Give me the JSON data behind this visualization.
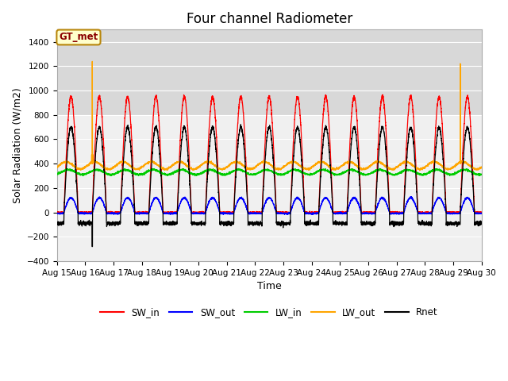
{
  "title": "Four channel Radiometer",
  "xlabel": "Time",
  "ylabel": "Solar Radiation (W/m2)",
  "annotation": "GT_met",
  "ylim": [
    -400,
    1500
  ],
  "xlim": [
    0,
    15
  ],
  "x_tick_labels": [
    "Aug 15",
    "Aug 16",
    "Aug 17",
    "Aug 18",
    "Aug 19",
    "Aug 20",
    "Aug 21",
    "Aug 22",
    "Aug 23",
    "Aug 24",
    "Aug 25",
    "Aug 26",
    "Aug 27",
    "Aug 28",
    "Aug 29",
    "Aug 30"
  ],
  "background_color": "#ffffff",
  "plot_bg_color": "#f0f0f0",
  "grid_color": "#ffffff",
  "upper_band_color": "#d8d8d8",
  "upper_band_ymin": 800,
  "upper_band_ymax": 1500,
  "colors": {
    "SW_in": "#ff0000",
    "SW_out": "#0000ff",
    "LW_in": "#00cc00",
    "LW_out": "#ffa500",
    "Rnet": "#000000"
  },
  "title_fontsize": 12,
  "label_fontsize": 9,
  "tick_fontsize": 7.5,
  "num_days": 15,
  "points_per_day": 288
}
